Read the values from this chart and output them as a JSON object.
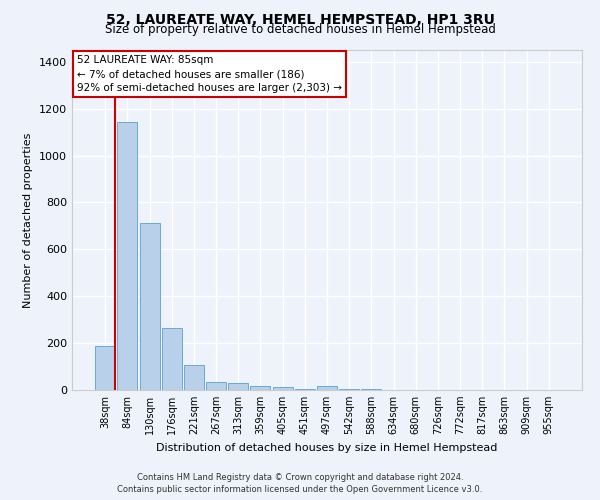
{
  "title": "52, LAUREATE WAY, HEMEL HEMPSTEAD, HP1 3RU",
  "subtitle": "Size of property relative to detached houses in Hemel Hempstead",
  "xlabel": "Distribution of detached houses by size in Hemel Hempstead",
  "ylabel": "Number of detached properties",
  "bar_color": "#b8d0ea",
  "bar_edge_color": "#6aaad4",
  "background_color": "#eef2fb",
  "grid_color": "#ffffff",
  "annotation_line_color": "#cc0000",
  "annotation_box_color": "#ffffff",
  "annotation_box_edge": "#cc0000",
  "annotation_text_line1": "52 LAUREATE WAY: 85sqm",
  "annotation_text_line2": "← 7% of detached houses are smaller (186)",
  "annotation_text_line3": "92% of semi-detached houses are larger (2,303) →",
  "categories": [
    "38sqm",
    "84sqm",
    "130sqm",
    "176sqm",
    "221sqm",
    "267sqm",
    "313sqm",
    "359sqm",
    "405sqm",
    "451sqm",
    "497sqm",
    "542sqm",
    "588sqm",
    "634sqm",
    "680sqm",
    "726sqm",
    "772sqm",
    "817sqm",
    "863sqm",
    "909sqm",
    "955sqm"
  ],
  "values": [
    186,
    1143,
    713,
    265,
    107,
    35,
    28,
    15,
    13,
    5,
    15,
    5,
    5,
    0,
    0,
    0,
    0,
    0,
    0,
    0,
    0
  ],
  "ylim": [
    0,
    1450
  ],
  "yticks": [
    0,
    200,
    400,
    600,
    800,
    1000,
    1200,
    1400
  ],
  "footnote1": "Contains HM Land Registry data © Crown copyright and database right 2024.",
  "footnote2": "Contains public sector information licensed under the Open Government Licence v3.0."
}
